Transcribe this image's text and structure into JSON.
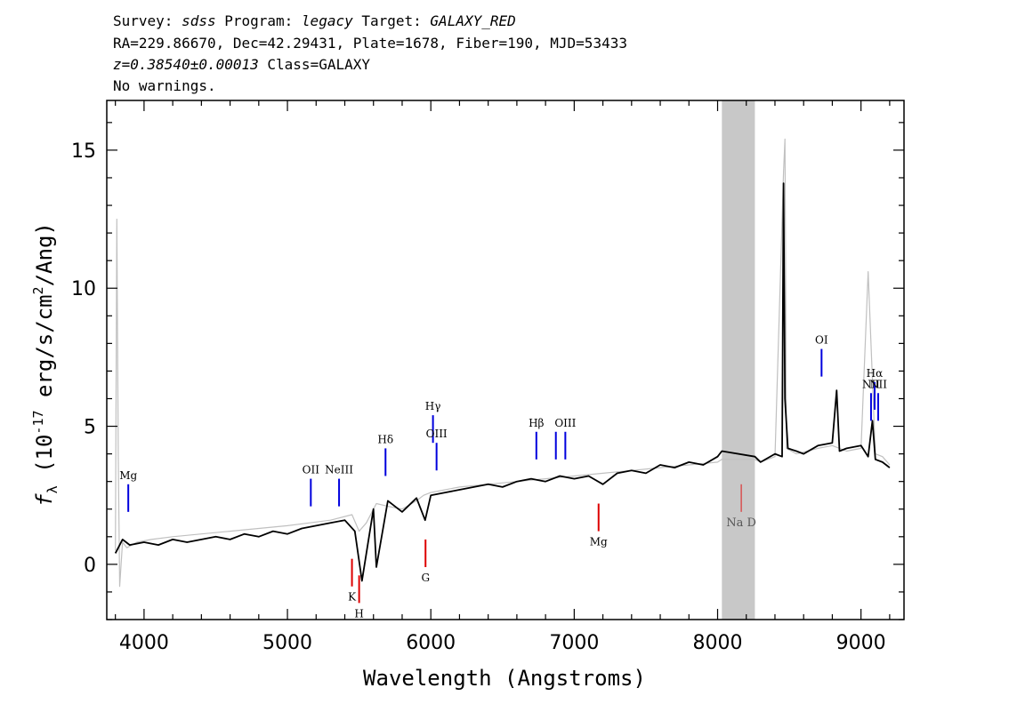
{
  "header": {
    "line1": {
      "survey_label": "Survey: ",
      "survey": "sdss",
      "program_label": " Program: ",
      "program": "legacy",
      "target_label": " Target: ",
      "target": "GALAXY_RED"
    },
    "line2": "RA=229.86670, Dec=42.29431, Plate=1678, Fiber=190, MJD=53433",
    "line3": {
      "redshift": "z=0.38540±0.00013",
      "class": " Class=GALAXY"
    },
    "line4": "No warnings."
  },
  "chart_data": {
    "type": "line",
    "xlabel": "Wavelength (Angstroms)",
    "ylabel_parts": {
      "f": "f",
      "lambda_sub": "λ",
      "open": " (10",
      "exp": "-17",
      "mid": " erg/s/cm",
      "sq": "2",
      "close": "/Ang)"
    },
    "xlim": [
      3740,
      9300
    ],
    "ylim": [
      -2,
      16.8
    ],
    "x_ticks": [
      4000,
      5000,
      6000,
      7000,
      8000,
      9000
    ],
    "y_ticks": [
      0,
      5,
      10,
      15
    ],
    "masked_region": [
      8030,
      8260
    ],
    "series": [
      {
        "style": "raw",
        "color": "#c0c0c0",
        "x": [
          3800,
          3810,
          3820,
          3830,
          3850,
          3880,
          3950,
          4050,
          4200,
          4400,
          4600,
          4800,
          5000,
          5150,
          5300,
          5450,
          5500,
          5550,
          5620,
          5700,
          5800,
          5900,
          5950,
          6000,
          6100,
          6200,
          6400,
          6600,
          6800,
          7000,
          7200,
          7400,
          7600,
          7800,
          8000,
          8030,
          8260,
          8300,
          8400,
          8460,
          8470,
          8480,
          8550,
          8700,
          8800,
          8900,
          9000,
          9050,
          9100,
          9150,
          9200
        ],
        "y": [
          0.5,
          12.5,
          4.0,
          -0.8,
          0.8,
          0.6,
          0.8,
          0.9,
          1.0,
          1.1,
          1.2,
          1.3,
          1.4,
          1.5,
          1.6,
          1.8,
          1.2,
          1.5,
          2.2,
          2.1,
          2.0,
          2.3,
          2.5,
          2.6,
          2.7,
          2.8,
          2.9,
          3.0,
          3.1,
          3.2,
          3.3,
          3.4,
          3.5,
          3.6,
          3.7,
          3.8,
          3.8,
          3.7,
          3.9,
          14.2,
          15.4,
          4.2,
          4.0,
          4.2,
          4.3,
          4.1,
          4.2,
          10.6,
          4.0,
          3.9,
          3.6
        ]
      },
      {
        "style": "smoothed",
        "color": "#000000",
        "x": [
          3800,
          3850,
          3900,
          4000,
          4100,
          4200,
          4300,
          4400,
          4500,
          4600,
          4700,
          4800,
          4900,
          5000,
          5100,
          5200,
          5300,
          5400,
          5470,
          5520,
          5600,
          5620,
          5700,
          5800,
          5900,
          5960,
          6000,
          6100,
          6200,
          6300,
          6400,
          6500,
          6600,
          6700,
          6800,
          6900,
          7000,
          7100,
          7200,
          7300,
          7400,
          7500,
          7600,
          7700,
          7800,
          7900,
          8000,
          8030,
          8260,
          8300,
          8400,
          8450,
          8460,
          8470,
          8490,
          8550,
          8600,
          8700,
          8800,
          8830,
          8850,
          8900,
          9000,
          9050,
          9080,
          9100,
          9150,
          9200
        ],
        "y": [
          0.4,
          0.9,
          0.7,
          0.8,
          0.7,
          0.9,
          0.8,
          0.9,
          1.0,
          0.9,
          1.1,
          1.0,
          1.2,
          1.1,
          1.3,
          1.4,
          1.5,
          1.6,
          1.2,
          -0.6,
          2.0,
          -0.1,
          2.3,
          1.9,
          2.4,
          1.6,
          2.5,
          2.6,
          2.7,
          2.8,
          2.9,
          2.8,
          3.0,
          3.1,
          3.0,
          3.2,
          3.1,
          3.2,
          2.9,
          3.3,
          3.4,
          3.3,
          3.6,
          3.5,
          3.7,
          3.6,
          3.9,
          4.1,
          3.9,
          3.7,
          4.0,
          3.9,
          13.8,
          6.0,
          4.2,
          4.1,
          4.0,
          4.3,
          4.4,
          6.3,
          4.1,
          4.2,
          4.3,
          3.9,
          5.2,
          3.8,
          3.7,
          3.5
        ]
      }
    ],
    "line_markers": [
      {
        "label": "Mg",
        "x": 3890,
        "y_bottom": 1.9,
        "y_top": 2.9,
        "color": "#0000dd",
        "group": "emission"
      },
      {
        "label": "OII",
        "x": 5163,
        "y_bottom": 2.1,
        "y_top": 3.1,
        "color": "#0000dd",
        "group": "emission"
      },
      {
        "label": "NeIII",
        "x": 5360,
        "y_bottom": 2.1,
        "y_top": 3.1,
        "color": "#0000dd",
        "group": "emission"
      },
      {
        "label": "Hδ",
        "x": 5684,
        "y_bottom": 3.2,
        "y_top": 4.2,
        "color": "#0000dd",
        "group": "emission"
      },
      {
        "label": "Hγ",
        "x": 6015,
        "y_bottom": 4.4,
        "y_top": 5.4,
        "color": "#0000dd",
        "group": "emission"
      },
      {
        "label": "OIII",
        "x": 6040,
        "y_bottom": 3.4,
        "y_top": 4.4,
        "color": "#0000dd",
        "group": "emission"
      },
      {
        "label": "Hβ",
        "x": 6736,
        "y_bottom": 3.8,
        "y_top": 4.8,
        "color": "#0000dd",
        "group": "emission"
      },
      {
        "label": "",
        "x": 6872,
        "y_bottom": 3.8,
        "y_top": 4.8,
        "color": "#0000dd",
        "group": "emission"
      },
      {
        "label": "OIII",
        "x": 6938,
        "y_bottom": 3.8,
        "y_top": 4.8,
        "color": "#0000dd",
        "group": "emission"
      },
      {
        "label": "OI",
        "x": 8725,
        "y_bottom": 6.8,
        "y_top": 7.8,
        "color": "#0000dd",
        "group": "emission"
      },
      {
        "label": "NII",
        "x": 9070,
        "y_bottom": 5.2,
        "y_top": 6.2,
        "color": "#0000dd",
        "group": "emission"
      },
      {
        "label": "Hα",
        "x": 9095,
        "y_bottom": 5.6,
        "y_top": 6.6,
        "color": "#0000dd",
        "group": "emission"
      },
      {
        "label": "NII",
        "x": 9120,
        "y_bottom": 5.2,
        "y_top": 6.2,
        "color": "#0000dd",
        "group": "emission"
      },
      {
        "label": "K",
        "x": 5450,
        "y_bottom": -0.8,
        "y_top": 0.2,
        "color": "#dd0000",
        "group": "absorption"
      },
      {
        "label": "H",
        "x": 5500,
        "y_bottom": -1.4,
        "y_top": -0.4,
        "color": "#dd0000",
        "group": "absorption"
      },
      {
        "label": "G",
        "x": 5963,
        "y_bottom": -0.1,
        "y_top": 0.9,
        "color": "#dd0000",
        "group": "absorption"
      },
      {
        "label": "Mg",
        "x": 7170,
        "y_bottom": 1.2,
        "y_top": 2.2,
        "color": "#dd0000",
        "group": "absorption"
      },
      {
        "label": "Na D",
        "x": 8165,
        "y_bottom": 1.9,
        "y_top": 2.9,
        "color": "#dd3333",
        "group": "sky"
      }
    ]
  }
}
